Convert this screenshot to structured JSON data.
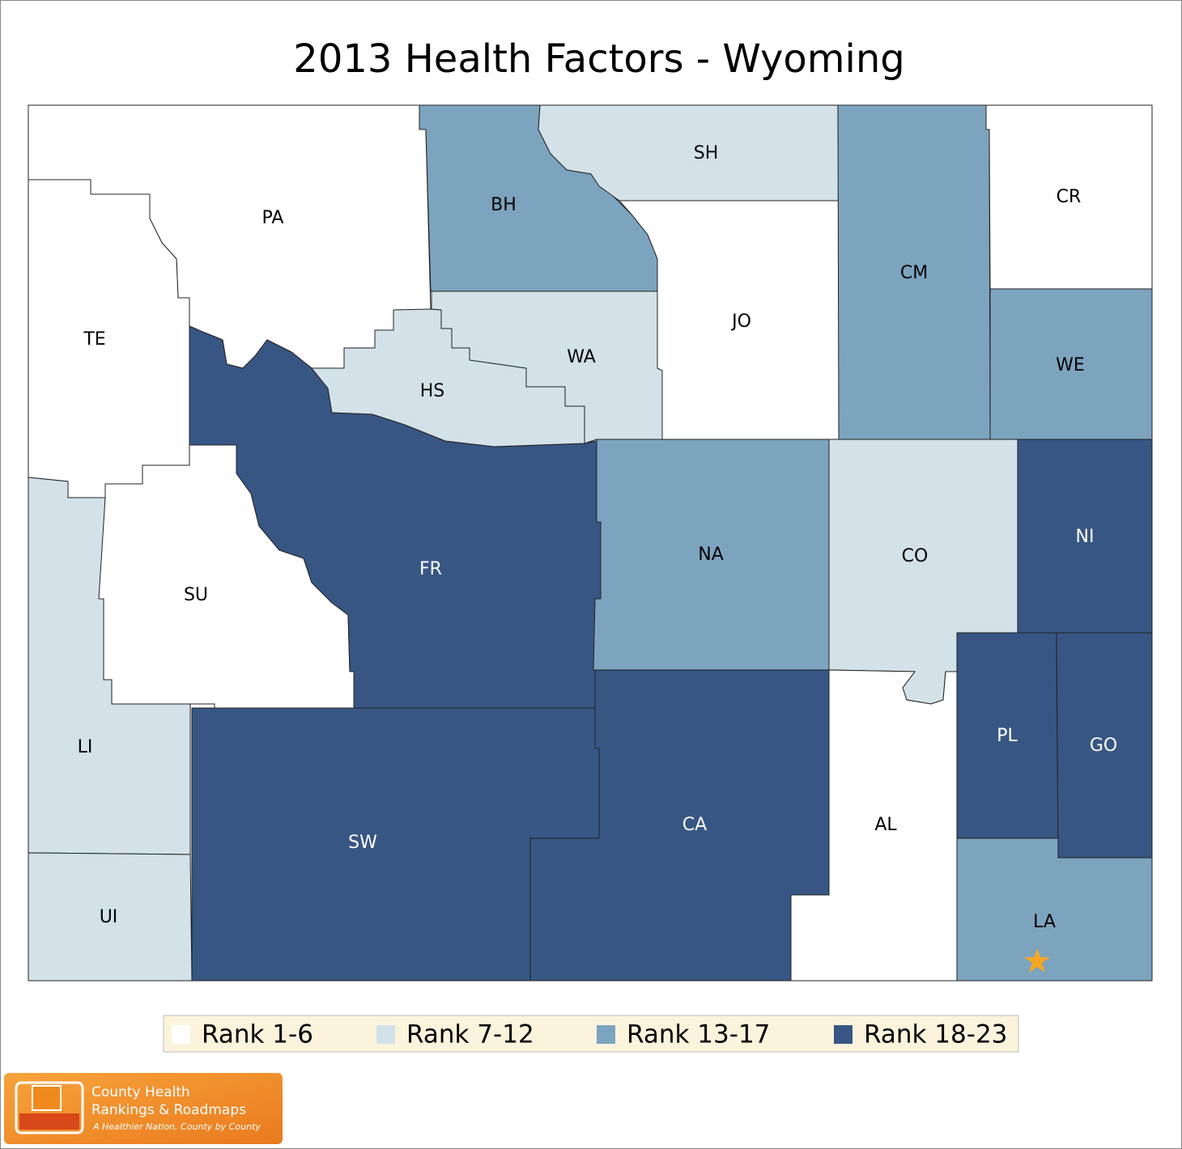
{
  "title": "2013 Health Factors - Wyoming",
  "counties": [
    {
      "label": "PA",
      "color": "#ffffff"
    },
    {
      "label": "TE",
      "color": "#ffffff"
    },
    {
      "label": "SU",
      "color": "#ffffff"
    },
    {
      "label": "LI",
      "color": "#d3e1e8"
    },
    {
      "label": "UI",
      "color": "#d3e1e8"
    },
    {
      "label": "FR",
      "color": "#375683"
    },
    {
      "label": "HS",
      "color": "#d3e1e8"
    },
    {
      "label": "WA",
      "color": "#d3e1e8"
    },
    {
      "label": "BH",
      "color": "#7da4bf"
    },
    {
      "label": "SH",
      "color": "#d3e1e8"
    },
    {
      "label": "JO",
      "color": "#ffffff"
    },
    {
      "label": "CM",
      "color": "#7da4bf"
    },
    {
      "label": "CR",
      "color": "#ffffff"
    },
    {
      "label": "WE",
      "color": "#7da4bf"
    },
    {
      "label": "NA",
      "color": "#7da4bf"
    },
    {
      "label": "CO",
      "color": "#d3e1e8"
    },
    {
      "label": "NI",
      "color": "#375683"
    },
    {
      "label": "PL",
      "color": "#375683"
    },
    {
      "label": "GO",
      "color": "#375683"
    },
    {
      "label": "LA",
      "color": "#7da4bf"
    },
    {
      "label": "AL",
      "color": "#ffffff"
    },
    {
      "label": "CA",
      "color": "#375683"
    },
    {
      "label": "SW",
      "color": "#375683"
    }
  ],
  "legend": [
    {
      "label": "Rank 1-6",
      "color": "#ffffff"
    },
    {
      "label": "Rank 7-12",
      "color": "#d3e1e8"
    },
    {
      "label": "Rank 13-17",
      "color": "#7da4bf"
    },
    {
      "label": "Rank 18-23",
      "color": "#375683"
    }
  ],
  "logo": {
    "line1": "County Health",
    "line2": "Rankings & Roadmaps",
    "tagline": "A Healthier Nation, County by County"
  }
}
